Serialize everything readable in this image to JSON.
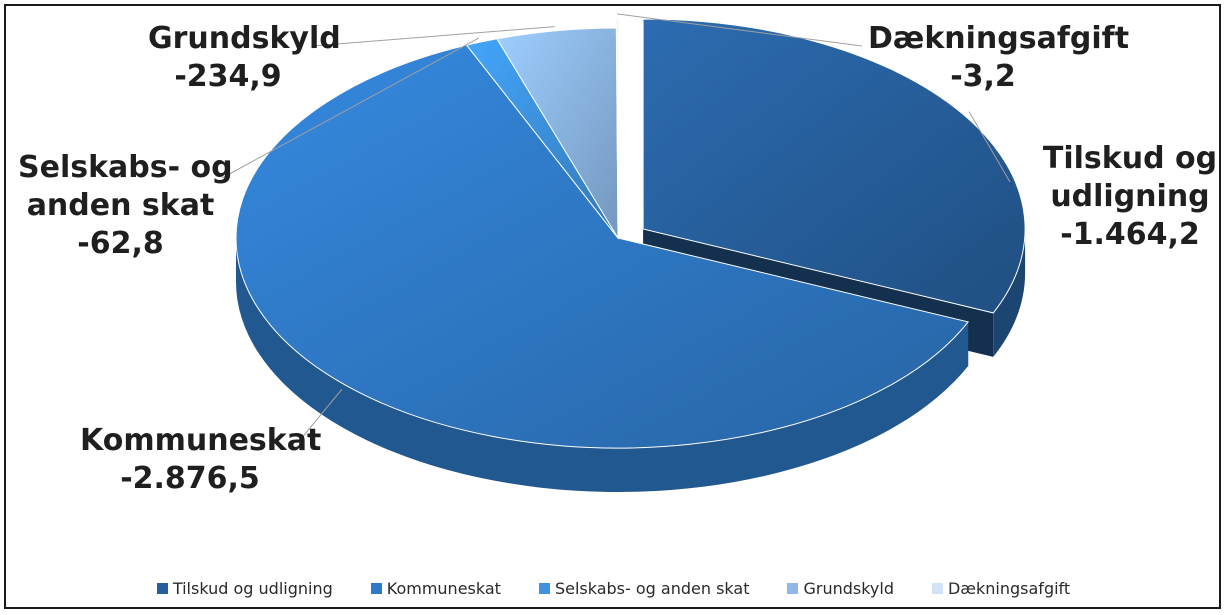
{
  "chart_data": {
    "type": "pie",
    "style": "3d-exploded",
    "slices": [
      {
        "name": "Tilskud og udligning",
        "label_lines": [
          "Tilskud og",
          "udligning"
        ],
        "value": -1464.2,
        "value_label": "-1.464,2",
        "color": "#27609E"
      },
      {
        "name": "Kommuneskat",
        "label_lines": [
          "Kommuneskat"
        ],
        "value": -2876.5,
        "value_label": "-2.876,5",
        "color": "#2F7AC8"
      },
      {
        "name": "Selskabs- og anden skat",
        "label_lines": [
          "Selskabs- og",
          "anden skat"
        ],
        "value": -62.8,
        "value_label": "-62,8",
        "color": "#3D93E0"
      },
      {
        "name": "Grundskyld",
        "label_lines": [
          "Grundskyld"
        ],
        "value": -234.9,
        "value_label": "-234,9",
        "color": "#8DB8E8"
      },
      {
        "name": "Dækningsafgift",
        "label_lines": [
          "Dækningsafgift"
        ],
        "value": -3.2,
        "value_label": "-3,2",
        "color": "#D2E3F5"
      }
    ],
    "legend": {
      "position": "bottom",
      "entries": [
        "Tilskud og udligning",
        "Kommuneskat",
        "Selskabs- og anden skat",
        "Grundskyld",
        "Dækningsafgift"
      ]
    }
  }
}
